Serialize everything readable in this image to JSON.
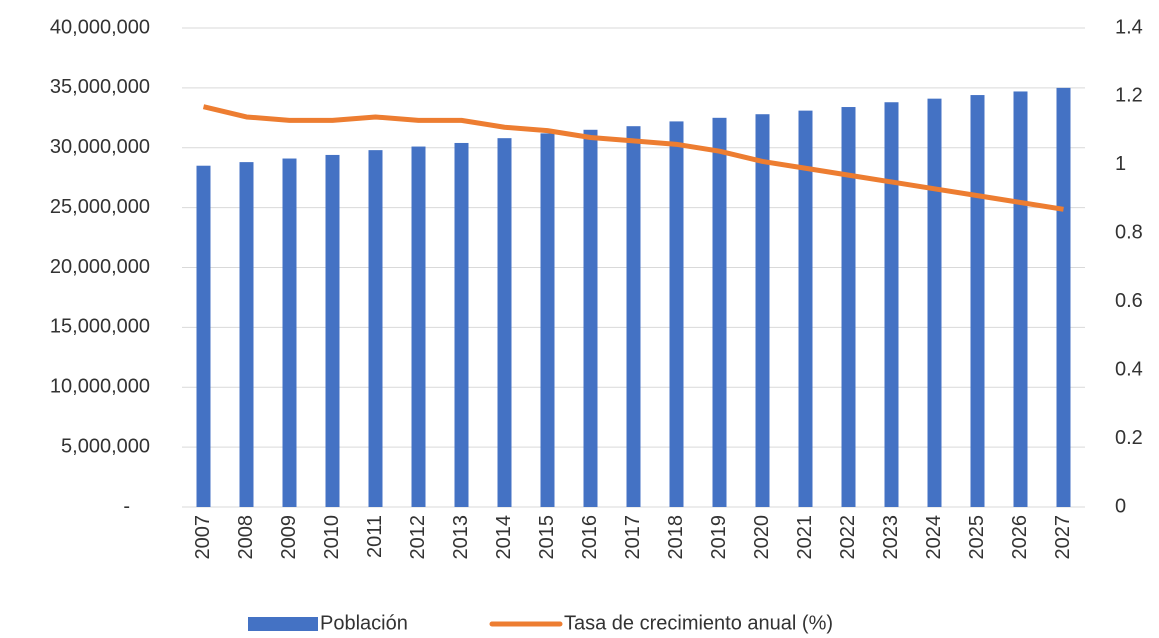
{
  "chart_data": {
    "type": "bar-line",
    "categories": [
      "2007",
      "2008",
      "2009",
      "2010",
      "2011",
      "2012",
      "2013",
      "2014",
      "2015",
      "2016",
      "2017",
      "2018",
      "2019",
      "2020",
      "2021",
      "2022",
      "2023",
      "2024",
      "2025",
      "2026",
      "2027"
    ],
    "series": [
      {
        "name": "Población",
        "type": "bar",
        "color": "#4472c4",
        "values": [
          28500000,
          28800000,
          29100000,
          29400000,
          29800000,
          30100000,
          30400000,
          30800000,
          31200000,
          31500000,
          31800000,
          32200000,
          32500000,
          32800000,
          33100000,
          33400000,
          33800000,
          34100000,
          34400000,
          34700000,
          35000000
        ]
      },
      {
        "name": "Tasa de crecimiento anual (%)",
        "type": "line",
        "axis": "y2",
        "color": "#ed7d31",
        "values": [
          1.17,
          1.14,
          1.13,
          1.13,
          1.14,
          1.13,
          1.13,
          1.11,
          1.1,
          1.08,
          1.07,
          1.06,
          1.04,
          1.01,
          0.99,
          0.97,
          0.95,
          0.93,
          0.91,
          0.89,
          0.87
        ]
      }
    ],
    "ylim": [
      0,
      40000000
    ],
    "yticks": [
      {
        "value": 0,
        "label": "-"
      },
      {
        "value": 5000000,
        "label": "5,000,000"
      },
      {
        "value": 10000000,
        "label": "10,000,000"
      },
      {
        "value": 15000000,
        "label": "15,000,000"
      },
      {
        "value": 20000000,
        "label": "20,000,000"
      },
      {
        "value": 25000000,
        "label": "25,000,000"
      },
      {
        "value": 30000000,
        "label": "30,000,000"
      },
      {
        "value": 35000000,
        "label": "35,000,000"
      },
      {
        "value": 40000000,
        "label": "40,000,000"
      }
    ],
    "y2lim": [
      0,
      1.4
    ],
    "y2ticks": [
      0,
      0.2,
      0.4,
      0.6,
      0.8,
      1,
      1.2,
      1.4
    ],
    "grid": true,
    "legend": "bottom"
  }
}
